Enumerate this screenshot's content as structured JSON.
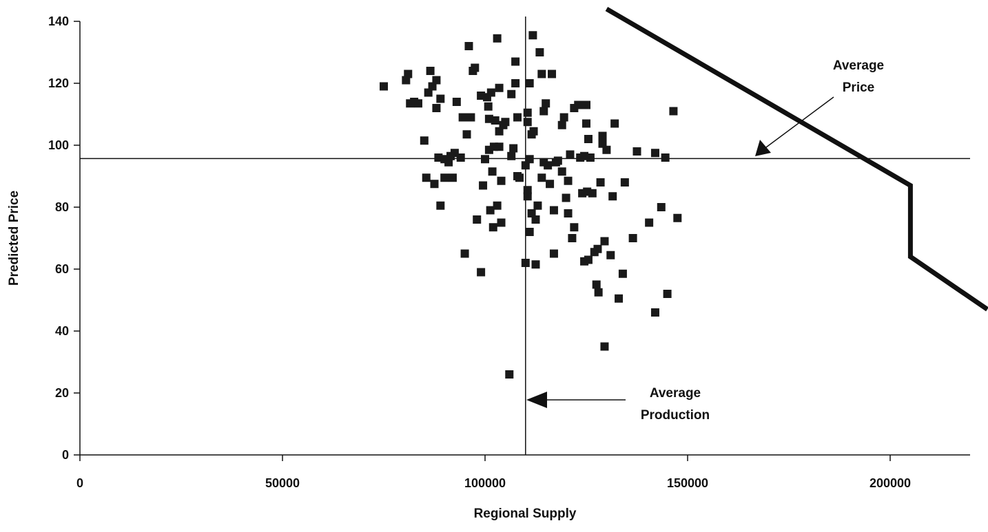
{
  "chart_data": {
    "type": "scatter",
    "xlabel": "Regional Supply",
    "ylabel": "Predicted Price",
    "xlim": [
      0,
      220000
    ],
    "ylim": [
      0,
      140
    ],
    "xticks": [
      0,
      50000,
      100000,
      150000,
      200000
    ],
    "xtick_labels": [
      "0",
      "50000",
      "100000",
      "150000",
      "200000"
    ],
    "yticks": [
      0,
      20,
      40,
      60,
      80,
      100,
      120,
      140
    ],
    "ytick_labels": [
      "0",
      "20",
      "40",
      "60",
      "80",
      "100",
      "120",
      "140"
    ],
    "grid": false,
    "legend": "none",
    "average_price": 95.7,
    "average_production": 110000,
    "annotations": [
      {
        "lines": [
          "Average",
          "Price"
        ],
        "points_to": "average-price-line"
      },
      {
        "lines": [
          "Average",
          "Production"
        ],
        "points_to": "average-production-line"
      }
    ],
    "supply_curve": [
      [
        130000,
        144
      ],
      [
        205000,
        87
      ],
      [
        205000,
        64
      ],
      [
        224000,
        47
      ]
    ],
    "points": [
      [
        75000,
        119
      ],
      [
        80500,
        121
      ],
      [
        81000,
        123
      ],
      [
        81500,
        113.5
      ],
      [
        82500,
        114
      ],
      [
        83500,
        113.5
      ],
      [
        85000,
        101.5
      ],
      [
        85500,
        89.5
      ],
      [
        86000,
        117
      ],
      [
        86500,
        124
      ],
      [
        87000,
        119
      ],
      [
        87500,
        87.5
      ],
      [
        88000,
        121
      ],
      [
        88000,
        112
      ],
      [
        88500,
        96
      ],
      [
        89000,
        80.5
      ],
      [
        89000,
        115
      ],
      [
        90000,
        95.5
      ],
      [
        90000,
        89.5
      ],
      [
        91000,
        94.5
      ],
      [
        91500,
        96.5
      ],
      [
        92000,
        89.5
      ],
      [
        92500,
        97.5
      ],
      [
        93000,
        114
      ],
      [
        94000,
        96
      ],
      [
        94500,
        109
      ],
      [
        95000,
        65
      ],
      [
        95500,
        103.5
      ],
      [
        96000,
        132
      ],
      [
        96500,
        109
      ],
      [
        97000,
        124
      ],
      [
        97500,
        125
      ],
      [
        98000,
        76
      ],
      [
        99000,
        59
      ],
      [
        99000,
        116
      ],
      [
        99500,
        87
      ],
      [
        100000,
        95.5
      ],
      [
        100500,
        115.5
      ],
      [
        100800,
        112.5
      ],
      [
        101000,
        98.5
      ],
      [
        101000,
        108.5
      ],
      [
        101300,
        79
      ],
      [
        101500,
        117
      ],
      [
        101800,
        91.5
      ],
      [
        102000,
        73.5
      ],
      [
        102200,
        99.5
      ],
      [
        102500,
        108
      ],
      [
        103000,
        80.5
      ],
      [
        103000,
        134.5
      ],
      [
        103500,
        99.5
      ],
      [
        103500,
        104.5
      ],
      [
        103500,
        118.5
      ],
      [
        104000,
        75
      ],
      [
        104000,
        88.5
      ],
      [
        104500,
        106.5
      ],
      [
        105000,
        107.5
      ],
      [
        106500,
        116.5
      ],
      [
        106500,
        96.5
      ],
      [
        107000,
        99
      ],
      [
        107500,
        120
      ],
      [
        107500,
        127
      ],
      [
        108000,
        109
      ],
      [
        108000,
        90
      ],
      [
        108500,
        89.5
      ],
      [
        110000,
        62
      ],
      [
        110000,
        93.5
      ],
      [
        110500,
        110.5
      ],
      [
        110500,
        85.5
      ],
      [
        110500,
        107.5
      ],
      [
        110500,
        83.5
      ],
      [
        111000,
        120
      ],
      [
        111000,
        72
      ],
      [
        111000,
        95.5
      ],
      [
        111500,
        103.5
      ],
      [
        111500,
        78
      ],
      [
        111800,
        135.5
      ],
      [
        112000,
        104.5
      ],
      [
        112500,
        61.5
      ],
      [
        112500,
        76
      ],
      [
        113000,
        80.5
      ],
      [
        113500,
        130
      ],
      [
        114000,
        89.5
      ],
      [
        114000,
        123
      ],
      [
        114500,
        111
      ],
      [
        114500,
        94.5
      ],
      [
        115000,
        113.5
      ],
      [
        115500,
        93.5
      ],
      [
        116000,
        87.5
      ],
      [
        116500,
        123
      ],
      [
        117000,
        65
      ],
      [
        117000,
        79
      ],
      [
        117500,
        94.5
      ],
      [
        118000,
        95
      ],
      [
        119000,
        91.5
      ],
      [
        119000,
        106.5
      ],
      [
        119500,
        109
      ],
      [
        120000,
        83
      ],
      [
        120500,
        78
      ],
      [
        120500,
        88.5
      ],
      [
        121000,
        97
      ],
      [
        121500,
        70
      ],
      [
        122000,
        112
      ],
      [
        122000,
        73.5
      ],
      [
        123000,
        113
      ],
      [
        123500,
        96
      ],
      [
        124000,
        84.5
      ],
      [
        124500,
        62.5
      ],
      [
        124500,
        96.5
      ],
      [
        125000,
        107
      ],
      [
        125000,
        113
      ],
      [
        125200,
        85
      ],
      [
        125500,
        102
      ],
      [
        125500,
        63
      ],
      [
        126000,
        96
      ],
      [
        126500,
        84.5
      ],
      [
        127000,
        65.5
      ],
      [
        127500,
        55
      ],
      [
        127800,
        66.5
      ],
      [
        128000,
        52.5
      ],
      [
        128500,
        88
      ],
      [
        129000,
        100.5
      ],
      [
        129000,
        103
      ],
      [
        129500,
        69
      ],
      [
        129500,
        35
      ],
      [
        130000,
        98.5
      ],
      [
        131000,
        64.5
      ],
      [
        131500,
        83.5
      ],
      [
        132000,
        107
      ],
      [
        133000,
        50.5
      ],
      [
        134000,
        58.5
      ],
      [
        134500,
        88
      ],
      [
        136500,
        70
      ],
      [
        137500,
        98
      ],
      [
        140500,
        75
      ],
      [
        142000,
        46
      ],
      [
        142000,
        97.5
      ],
      [
        143500,
        80
      ],
      [
        144500,
        96
      ],
      [
        145000,
        52
      ],
      [
        146500,
        111
      ],
      [
        147500,
        76.5
      ],
      [
        106000,
        26
      ]
    ]
  }
}
